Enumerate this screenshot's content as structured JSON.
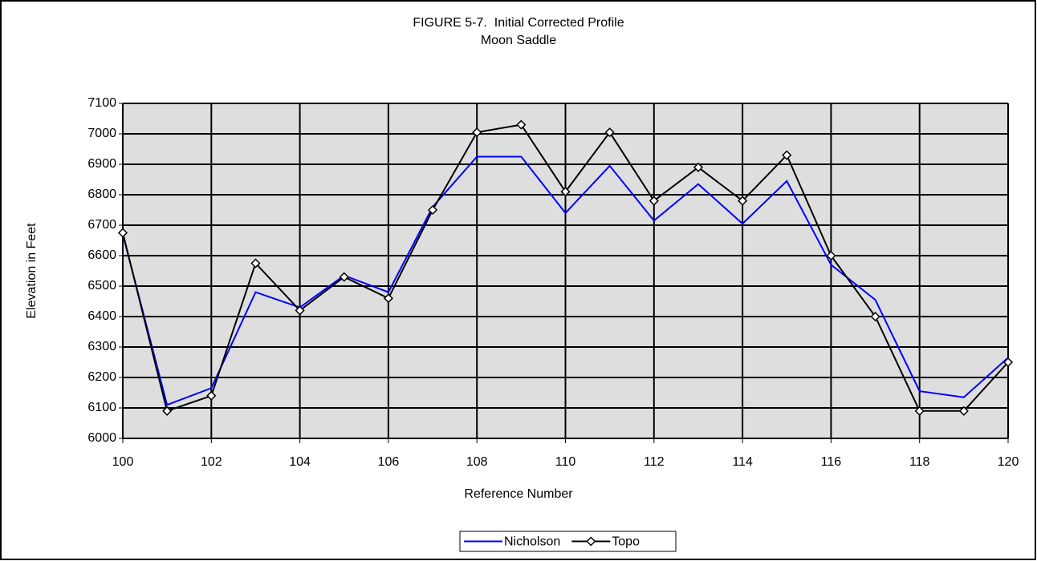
{
  "chart_data": {
    "type": "line",
    "title": "FIGURE 5-7.  Initial Corrected Profile",
    "subtitle": "Moon Saddle",
    "x_label": "Reference Number",
    "y_label": "Elevation in Feet",
    "x": [
      100,
      101,
      102,
      103,
      104,
      105,
      106,
      107,
      108,
      109,
      110,
      111,
      112,
      113,
      114,
      115,
      116,
      117,
      118,
      119,
      120
    ],
    "series": [
      {
        "name": "Nicholson",
        "color": "#0000ff",
        "marker": "none",
        "values": [
          6670,
          6110,
          6165,
          6480,
          6430,
          6535,
          6480,
          6760,
          6925,
          6925,
          6740,
          6895,
          6715,
          6835,
          6705,
          6845,
          6570,
          6455,
          6155,
          6135,
          6265
        ]
      },
      {
        "name": "Topo",
        "color": "#000000",
        "marker": "diamond",
        "values": [
          6675,
          6090,
          6140,
          6575,
          6420,
          6530,
          6460,
          6750,
          7005,
          7030,
          6810,
          7005,
          6780,
          6890,
          6780,
          6930,
          6600,
          6400,
          6090,
          6090,
          6250
        ]
      }
    ],
    "xlim": [
      100,
      120
    ],
    "xticks": [
      100,
      102,
      104,
      106,
      108,
      110,
      112,
      114,
      116,
      118,
      120
    ],
    "ylim": [
      6000,
      7100
    ],
    "yticks": [
      6000,
      6100,
      6200,
      6300,
      6400,
      6500,
      6600,
      6700,
      6800,
      6900,
      7000,
      7100
    ],
    "grid": true,
    "legend": "bottom"
  }
}
